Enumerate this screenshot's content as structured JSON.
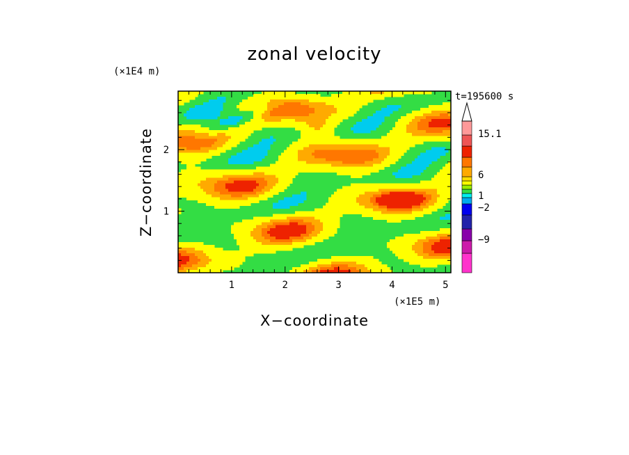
{
  "chart_data": {
    "type": "heatmap",
    "title": "zonal velocity",
    "xlabel": "X−coordinate",
    "ylabel": "Z−coordinate",
    "x_unit": "(×1E5 m)",
    "y_unit": "(×1E4 m)",
    "time_label": "t=195600 s",
    "xlim": [
      0,
      5.1
    ],
    "ylim": [
      0,
      2.95
    ],
    "x_ticks": [
      "1",
      "2",
      "3",
      "4",
      "5"
    ],
    "x_tick_values": [
      1,
      2,
      3,
      4,
      5
    ],
    "y_ticks": [
      "1",
      "2"
    ],
    "y_tick_values": [
      1,
      2
    ],
    "colorbar": {
      "labels": [
        "15.1",
        "6",
        "1",
        "−2",
        "−9"
      ],
      "label_values": [
        15.1,
        6,
        1,
        -2,
        -9
      ],
      "levels": [
        {
          "color": "#ff33cc"
        },
        {
          "color": "#cc1aaa"
        },
        {
          "color": "#8800aa"
        },
        {
          "color": "#2222aa"
        },
        {
          "color": "#0000ee"
        },
        {
          "color": "#00aaee"
        },
        {
          "color": "#00eeee"
        },
        {
          "color": "#33dd44"
        },
        {
          "color": "#99ee00"
        },
        {
          "color": "#ffff00"
        },
        {
          "color": "#ffdd00"
        },
        {
          "color": "#ffaa00"
        },
        {
          "color": "#ff7700"
        },
        {
          "color": "#ee2200"
        },
        {
          "color": "#ee5555"
        },
        {
          "color": "#ff9999"
        },
        {
          "color": "#ffcccc"
        },
        {
          "color": "#ffffff"
        }
      ]
    },
    "palette": [
      "#ff33cc",
      "#0000ee",
      "#00ccee",
      "#33dd44",
      "#ffff00",
      "#ffaa00",
      "#ff7700",
      "#ee2200"
    ]
  }
}
